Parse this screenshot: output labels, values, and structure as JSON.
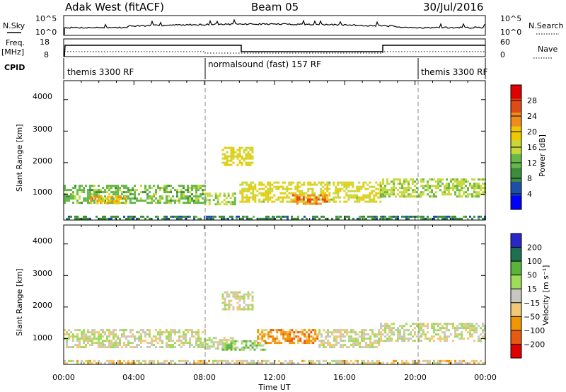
{
  "header": {
    "station": "Adak West (fitACF)",
    "beam": "Beam 05",
    "date": "30/Jul/2016"
  },
  "noise_panel": {
    "left_label": "N.Sky",
    "right_label": "N.Search",
    "left_ticks": [
      "10^5",
      "10^0"
    ],
    "right_ticks": [
      "10^5",
      "10^0"
    ]
  },
  "freq_panel": {
    "left_label_1": "Freq.",
    "left_label_2": "[MHz]",
    "right_label": "Nave",
    "left_ticks": [
      "18",
      "8"
    ],
    "right_ticks": [
      "60",
      "0"
    ]
  },
  "cpid_panel": {
    "label": "CPID",
    "segments": [
      {
        "label": "themis 3300 RF",
        "start_hour": 0,
        "end_hour": 8
      },
      {
        "label": "normalsound (fast) 157 RF",
        "start_hour": 8,
        "end_hour": 20
      },
      {
        "label": "themis 3300 RF",
        "start_hour": 20,
        "end_hour": 24
      }
    ]
  },
  "power_panel": {
    "ylabel": "Slant Range [km]",
    "yticks": [
      "4000",
      "3000",
      "2000",
      "1000"
    ],
    "colorbar_label": "Power [dB]",
    "colorbar_ticks": [
      "28",
      "24",
      "20",
      "16",
      "12",
      "8",
      "4"
    ]
  },
  "velocity_panel": {
    "ylabel": "Slant Range [km]",
    "yticks": [
      "4000",
      "3000",
      "2000",
      "1000"
    ],
    "colorbar_label": "Velocity [m s⁻¹]",
    "colorbar_ticks": [
      "200",
      "100",
      "50",
      "15",
      "−15",
      "−50",
      "−100",
      "−200"
    ]
  },
  "xaxis": {
    "xlabel": "Time UT",
    "ticks": [
      "00:00",
      "04:00",
      "08:00",
      "12:00",
      "16:00",
      "20:00",
      "00:00"
    ]
  },
  "colors": {
    "power_scale": [
      "#0000ff",
      "#1e4fa8",
      "#3c8c3c",
      "#66b84a",
      "#c8d838",
      "#f0c800",
      "#f08c1e",
      "#e04a14",
      "#e00000"
    ],
    "velocity_scale": [
      "#2828c8",
      "#1e6e50",
      "#5ab43c",
      "#9edc5a",
      "#c8c8c0",
      "#f0c878",
      "#f09600",
      "#e85a10",
      "#e00000"
    ]
  },
  "chart_data": [
    {
      "type": "heatmap",
      "title": "Power",
      "x_unit": "hours UT",
      "y_unit": "km",
      "xlim": [
        0,
        24
      ],
      "ylim": [
        180,
        4600
      ],
      "zlim": [
        0,
        30
      ],
      "grid": false,
      "echo_regions": [
        {
          "t0": 0.0,
          "t1": 8.0,
          "r0": 700,
          "r1": 1300,
          "level": 12
        },
        {
          "t0": 1.5,
          "t1": 3.5,
          "r0": 700,
          "r1": 950,
          "level": 20
        },
        {
          "t0": 8.0,
          "t1": 9.7,
          "r0": 700,
          "r1": 1050,
          "level": 14
        },
        {
          "t0": 9.0,
          "t1": 10.8,
          "r0": 1900,
          "r1": 2500,
          "level": 16
        },
        {
          "t0": 10.0,
          "t1": 18.0,
          "r0": 750,
          "r1": 1400,
          "level": 16
        },
        {
          "t0": 13.0,
          "t1": 15.0,
          "r0": 700,
          "r1": 1000,
          "level": 22
        },
        {
          "t0": 18.0,
          "t1": 24.0,
          "r0": 900,
          "r1": 1500,
          "level": 14
        },
        {
          "t0": 0.0,
          "t1": 24.0,
          "r0": 200,
          "r1": 320,
          "level": 8
        }
      ]
    },
    {
      "type": "heatmap",
      "title": "Velocity",
      "x_unit": "hours UT",
      "y_unit": "km",
      "xlim": [
        0,
        24
      ],
      "ylim": [
        180,
        4600
      ],
      "zlim": [
        -250,
        250
      ],
      "grid": false,
      "echo_regions": [
        {
          "t0": 0.0,
          "t1": 8.0,
          "r0": 700,
          "r1": 1300,
          "level": 0
        },
        {
          "t0": 8.0,
          "t1": 9.7,
          "r0": 700,
          "r1": 1050,
          "level": 0
        },
        {
          "t0": 9.0,
          "t1": 10.8,
          "r0": 1900,
          "r1": 2500,
          "level": 0
        },
        {
          "t0": 9.0,
          "t1": 11.5,
          "r0": 650,
          "r1": 950,
          "level": 40
        },
        {
          "t0": 11.0,
          "t1": 14.5,
          "r0": 850,
          "r1": 1300,
          "level": -70
        },
        {
          "t0": 14.5,
          "t1": 18.0,
          "r0": 750,
          "r1": 1300,
          "level": 0
        },
        {
          "t0": 18.0,
          "t1": 24.0,
          "r0": 900,
          "r1": 1500,
          "level": 0
        },
        {
          "t0": 0.0,
          "t1": 24.0,
          "r0": 200,
          "r1": 320,
          "level": -20
        }
      ]
    }
  ]
}
